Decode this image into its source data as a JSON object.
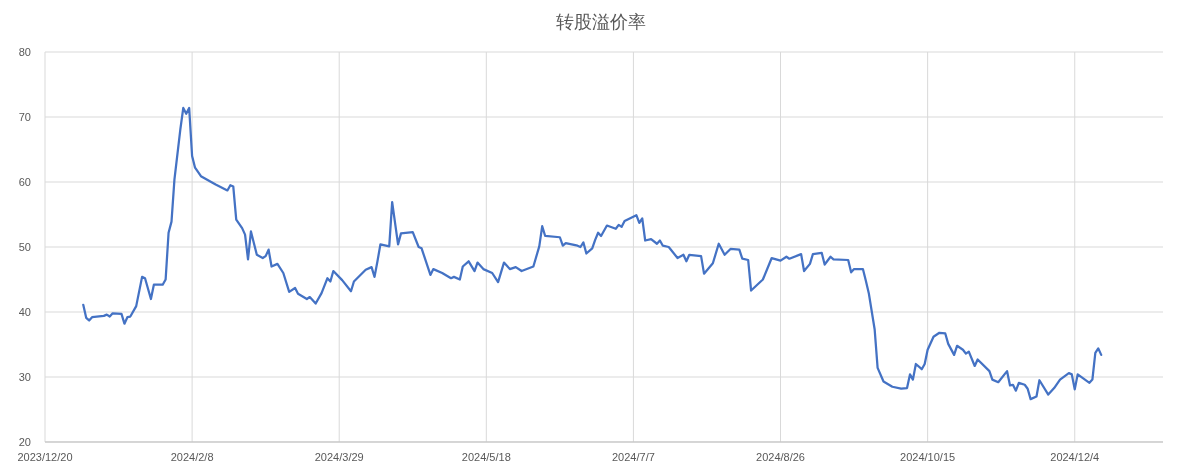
{
  "chart_data": {
    "type": "line",
    "title": "转股溢价率",
    "xlim": [
      "2023-12-20",
      "2025-01-03"
    ],
    "xticks": [
      {
        "value": "2023-12-20",
        "label": "2023/12/20"
      },
      {
        "value": "2024-02-08",
        "label": "2024/2/8"
      },
      {
        "value": "2024-03-29",
        "label": "2024/3/29"
      },
      {
        "value": "2024-05-18",
        "label": "2024/5/18"
      },
      {
        "value": "2024-07-07",
        "label": "2024/7/7"
      },
      {
        "value": "2024-08-26",
        "label": "2024/8/26"
      },
      {
        "value": "2024-10-15",
        "label": "2024/10/15"
      },
      {
        "value": "2024-12-04",
        "label": "2024/12/4"
      }
    ],
    "ylim": [
      20,
      80
    ],
    "yticks": [
      20,
      30,
      40,
      50,
      60,
      70,
      80
    ],
    "grid": true,
    "series": [
      {
        "color": "#4472c4",
        "x": [
          "2024-01-02",
          "2024-01-03",
          "2024-01-04",
          "2024-01-05",
          "2024-01-09",
          "2024-01-10",
          "2024-01-11",
          "2024-01-12",
          "2024-01-15",
          "2024-01-16",
          "2024-01-17",
          "2024-01-18",
          "2024-01-20",
          "2024-01-22",
          "2024-01-23",
          "2024-01-25",
          "2024-01-26",
          "2024-01-29",
          "2024-01-30",
          "2024-01-31",
          "2024-02-01",
          "2024-02-02",
          "2024-02-04",
          "2024-02-05",
          "2024-02-06",
          "2024-02-07",
          "2024-02-08",
          "2024-02-09",
          "2024-02-11",
          "2024-02-16",
          "2024-02-20",
          "2024-02-21",
          "2024-02-22",
          "2024-02-23",
          "2024-02-25",
          "2024-02-26",
          "2024-02-27",
          "2024-02-28",
          "2024-03-01",
          "2024-03-03",
          "2024-03-04",
          "2024-03-05",
          "2024-03-06",
          "2024-03-08",
          "2024-03-10",
          "2024-03-12",
          "2024-03-14",
          "2024-03-15",
          "2024-03-18",
          "2024-03-19",
          "2024-03-21",
          "2024-03-23",
          "2024-03-25",
          "2024-03-26",
          "2024-03-27",
          "2024-03-30",
          "2024-04-02",
          "2024-04-03",
          "2024-04-07",
          "2024-04-09",
          "2024-04-10",
          "2024-04-11",
          "2024-04-12",
          "2024-04-15",
          "2024-04-16",
          "2024-04-18",
          "2024-04-19",
          "2024-04-23",
          "2024-04-25",
          "2024-04-26",
          "2024-04-29",
          "2024-04-30",
          "2024-05-03",
          "2024-05-06",
          "2024-05-07",
          "2024-05-09",
          "2024-05-10",
          "2024-05-12",
          "2024-05-14",
          "2024-05-15",
          "2024-05-17",
          "2024-05-20",
          "2024-05-22",
          "2024-05-24",
          "2024-05-26",
          "2024-05-28",
          "2024-05-30",
          "2024-06-03",
          "2024-06-05",
          "2024-06-06",
          "2024-06-07",
          "2024-06-12",
          "2024-06-13",
          "2024-06-14",
          "2024-06-18",
          "2024-06-19",
          "2024-06-20",
          "2024-06-21",
          "2024-06-23",
          "2024-06-24",
          "2024-06-25",
          "2024-06-26",
          "2024-06-28",
          "2024-07-01",
          "2024-07-02",
          "2024-07-03",
          "2024-07-04",
          "2024-07-08",
          "2024-07-09",
          "2024-07-10",
          "2024-07-11",
          "2024-07-13",
          "2024-07-15",
          "2024-07-16",
          "2024-07-17",
          "2024-07-19",
          "2024-07-22",
          "2024-07-24",
          "2024-07-25",
          "2024-07-26",
          "2024-07-30",
          "2024-07-31",
          "2024-08-03",
          "2024-08-05",
          "2024-08-07",
          "2024-08-09",
          "2024-08-12",
          "2024-08-13",
          "2024-08-15",
          "2024-08-16",
          "2024-08-20",
          "2024-08-23",
          "2024-08-26",
          "2024-08-28",
          "2024-08-29",
          "2024-09-02",
          "2024-09-03",
          "2024-09-05",
          "2024-09-06",
          "2024-09-09",
          "2024-09-10",
          "2024-09-12",
          "2024-09-13",
          "2024-09-18",
          "2024-09-19",
          "2024-09-20",
          "2024-09-23",
          "2024-09-24",
          "2024-09-25",
          "2024-09-27",
          "2024-09-28",
          "2024-09-30",
          "2024-10-03",
          "2024-10-06",
          "2024-10-08",
          "2024-10-09",
          "2024-10-10",
          "2024-10-11",
          "2024-10-13",
          "2024-10-14",
          "2024-10-15",
          "2024-10-17",
          "2024-10-19",
          "2024-10-21",
          "2024-10-22",
          "2024-10-24",
          "2024-10-25",
          "2024-10-27",
          "2024-10-28",
          "2024-10-29",
          "2024-10-31",
          "2024-11-01",
          "2024-11-05",
          "2024-11-06",
          "2024-11-08",
          "2024-11-11",
          "2024-11-12",
          "2024-11-13",
          "2024-11-14",
          "2024-11-15",
          "2024-11-17",
          "2024-11-18",
          "2024-11-19",
          "2024-11-21",
          "2024-11-22",
          "2024-11-25",
          "2024-11-27",
          "2024-11-29",
          "2024-12-02",
          "2024-12-03",
          "2024-12-04",
          "2024-12-05",
          "2024-12-09",
          "2024-12-10",
          "2024-12-11",
          "2024-12-12",
          "2024-12-13"
        ],
        "values": [
          41.1,
          39.1,
          38.7,
          39.2,
          39.4,
          39.6,
          39.3,
          39.8,
          39.7,
          38.2,
          39.2,
          39.3,
          40.9,
          45.4,
          45.2,
          42.0,
          44.2,
          44.2,
          45.0,
          52.2,
          53.9,
          60.4,
          68.1,
          71.4,
          70.5,
          71.4,
          64.0,
          62.2,
          60.9,
          59.6,
          58.7,
          59.5,
          59.3,
          54.2,
          52.9,
          51.9,
          48.1,
          52.4,
          48.8,
          48.3,
          48.6,
          49.6,
          47.0,
          47.4,
          46.0,
          43.1,
          43.7,
          42.8,
          42.0,
          42.3,
          41.3,
          42.9,
          45.2,
          44.7,
          46.3,
          44.9,
          43.2,
          44.7,
          46.5,
          46.9,
          45.4,
          47.8,
          50.4,
          50.1,
          56.9,
          50.4,
          52.1,
          52.3,
          50.0,
          49.8,
          45.7,
          46.6,
          46.0,
          45.2,
          45.4,
          45.0,
          47.0,
          47.8,
          46.3,
          47.6,
          46.6,
          46.0,
          44.6,
          47.6,
          46.6,
          46.9,
          46.3,
          47.0,
          50.1,
          53.2,
          51.7,
          51.5,
          50.2,
          50.6,
          50.2,
          50.0,
          50.7,
          49.0,
          49.8,
          51.1,
          52.2,
          51.7,
          53.3,
          52.8,
          53.4,
          53.1,
          54.0,
          54.9,
          53.7,
          54.4,
          51.0,
          51.2,
          50.5,
          51.0,
          50.2,
          50.0,
          48.3,
          48.8,
          47.8,
          48.8,
          48.6,
          45.9,
          47.5,
          50.5,
          48.8,
          49.7,
          49.6,
          48.2,
          48.0,
          43.3,
          45.0,
          48.3,
          47.9,
          48.5,
          48.2,
          48.9,
          46.3,
          47.4,
          48.9,
          49.1,
          47.3,
          48.5,
          48.1,
          48.0,
          46.1,
          46.6,
          46.6,
          44.8,
          42.9,
          37.3,
          31.4,
          29.3,
          28.5,
          28.2,
          28.3,
          30.4,
          29.6,
          32.0,
          31.2,
          32.0,
          34.2,
          36.2,
          36.8,
          36.7,
          35.1,
          33.4,
          34.8,
          34.2,
          33.6,
          33.9,
          31.7,
          32.7,
          30.9,
          29.6,
          29.2,
          30.9,
          28.7,
          28.8,
          27.9,
          29.1,
          28.8,
          28.2,
          26.6,
          27.0,
          29.5,
          27.3,
          28.3,
          29.6,
          30.6,
          30.4,
          28.1,
          30.4,
          29.1,
          29.6,
          33.7,
          34.4,
          33.4
        ]
      }
    ]
  }
}
